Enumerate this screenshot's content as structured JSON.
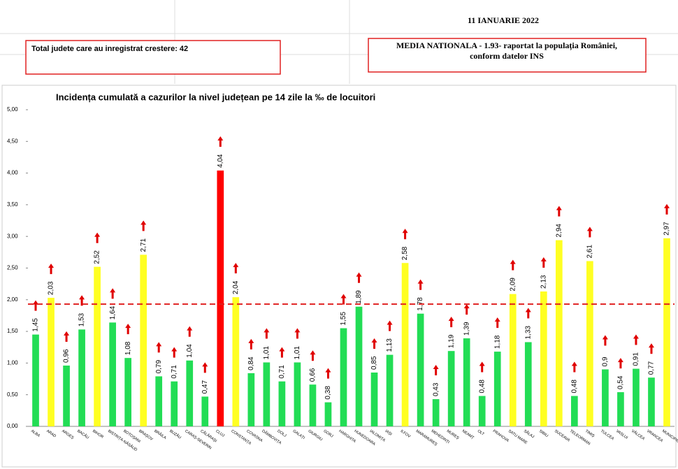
{
  "header": {
    "date": "11 IANUARIE 2022",
    "growth_box": "Total judete care au inregistrat crestere: 42",
    "average_box": [
      "MEDIA NATIONALA - 1.93-  raportat la populația României,",
      "conform datelor INS"
    ]
  },
  "chart_data": {
    "type": "bar",
    "title": "Incidența cumulată a cazurilor la nivel județean pe 14 zile la ‰ de locuitori",
    "categories": [
      "ALBA",
      "ARAD",
      "ARGEȘ",
      "BACĂU",
      "BIHOR",
      "BISTRIȚA-NĂSĂUD",
      "BOTOȘANI",
      "BRAȘOV",
      "BRĂILA",
      "BUZĂU",
      "CARAȘ-SEVERIN",
      "CĂLĂRAȘI",
      "CLUJ",
      "CONSTANȚA",
      "COVASNA",
      "DÂMBOVIȚA",
      "DOLJ",
      "GALAȚI",
      "GIURGIU",
      "GORJ",
      "HARGHITA",
      "HUNEDOARA",
      "IALOMIȚA",
      "IAȘI",
      "ILFOV",
      "MARAMUREȘ",
      "MEHEDINȚI",
      "MUREȘ",
      "NEAMȚ",
      "OLT",
      "PRAHOVA",
      "SATU MARE",
      "SĂLAJ",
      "SIBIU",
      "SUCEAVA",
      "TELEORMAN",
      "TIMIȘ",
      "TULCEA",
      "VASLUI",
      "VÂLCEA",
      "VRANCEA",
      "MUNICIPIUL..."
    ],
    "values": [
      1.45,
      2.03,
      0.96,
      1.53,
      2.52,
      1.64,
      1.08,
      2.71,
      0.79,
      0.71,
      1.04,
      0.47,
      4.04,
      2.04,
      0.84,
      1.01,
      0.71,
      1.01,
      0.66,
      0.38,
      1.55,
      1.89,
      0.85,
      1.13,
      2.58,
      1.78,
      0.43,
      1.19,
      1.39,
      0.48,
      1.18,
      2.09,
      1.33,
      2.13,
      2.94,
      0.48,
      2.61,
      0.9,
      0.54,
      0.91,
      0.77,
      2.97
    ],
    "value_labels": [
      "1,45",
      "2,03",
      "0,96",
      "1,53",
      "2,52",
      "1,64",
      "1,08",
      "2,71",
      "0,79",
      "0,71",
      "1,04",
      "0,47",
      "4,04",
      "2,04",
      "0,84",
      "1,01",
      "0,71",
      "1,01",
      "0,66",
      "0,38",
      "1,55",
      "1,89",
      "0,85",
      "1,13",
      "2,58",
      "1,78",
      "0,43",
      "1,19",
      "1,39",
      "0,48",
      "1,18",
      "2,09",
      "1,33",
      "2,13",
      "2,94",
      "0,48",
      "2,61",
      "0,9",
      "0,54",
      "0,91",
      "0,77",
      "2,97"
    ],
    "colors": [
      "#22dd55",
      "#ffff22",
      "#22dd55",
      "#22dd55",
      "#ffff22",
      "#22dd55",
      "#22dd55",
      "#ffff22",
      "#22dd55",
      "#22dd55",
      "#22dd55",
      "#22dd55",
      "#ff0000",
      "#ffff22",
      "#22dd55",
      "#22dd55",
      "#22dd55",
      "#22dd55",
      "#22dd55",
      "#22dd55",
      "#22dd55",
      "#22dd55",
      "#22dd55",
      "#22dd55",
      "#ffff22",
      "#22dd55",
      "#22dd55",
      "#22dd55",
      "#22dd55",
      "#22dd55",
      "#22dd55",
      "#ffff22",
      "#22dd55",
      "#ffff22",
      "#ffff22",
      "#22dd55",
      "#ffff22",
      "#22dd55",
      "#22dd55",
      "#22dd55",
      "#22dd55",
      "#ffff22"
    ],
    "average": 1.93,
    "average_color": "#e02020",
    "ylim": [
      0,
      5
    ],
    "yticks": [
      {
        "value": 0,
        "label": "0,00"
      },
      {
        "value": 0.5,
        "label": "0,50"
      },
      {
        "value": 1,
        "label": "1,00"
      },
      {
        "value": 1.5,
        "label": "1,50"
      },
      {
        "value": 2,
        "label": "2,00"
      },
      {
        "value": 2.5,
        "label": "2,50"
      },
      {
        "value": 3,
        "label": "3,00"
      },
      {
        "value": 3.5,
        "label": "3,50"
      },
      {
        "value": 4,
        "label": "4,00"
      },
      {
        "value": 4.5,
        "label": "4,50"
      },
      {
        "value": 5,
        "label": "5,00"
      }
    ]
  }
}
